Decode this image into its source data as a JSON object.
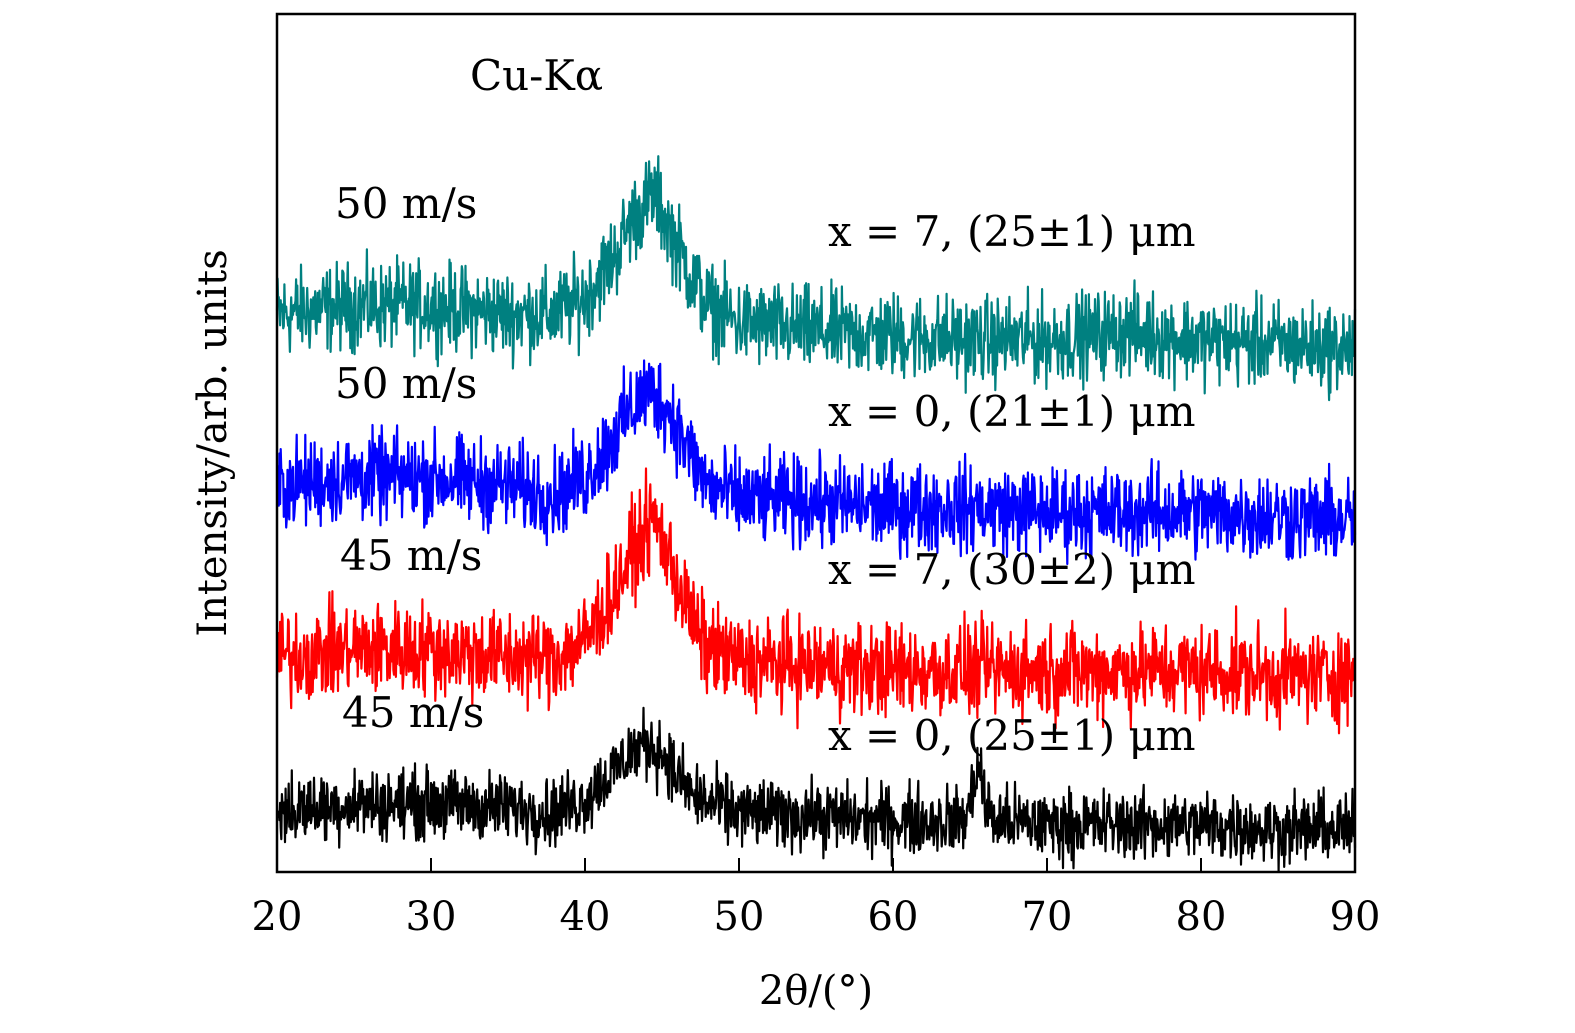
{
  "chart_data": {
    "type": "line",
    "title": "",
    "annotation": "Cu-Kα",
    "xlabel": "2θ/(°)",
    "ylabel": "Intensity/arb. units",
    "xlim": [
      20,
      90
    ],
    "xticks": [
      20,
      30,
      40,
      50,
      60,
      70,
      80,
      90
    ],
    "ylim": [
      0,
      100
    ],
    "grid": false,
    "legend": "inline labels",
    "series": [
      {
        "speed": "50 m/s",
        "name": "x = 7, (25±1) μm",
        "color": "#008080",
        "x": [
          20,
          25,
          30,
          35,
          38,
          40,
          42,
          43,
          44,
          44.5,
          45,
          46,
          47,
          48,
          50,
          55,
          60,
          65,
          70,
          75,
          80,
          85,
          90
        ],
        "y": [
          65,
          66,
          66,
          65,
          65,
          67,
          72,
          76,
          78,
          79,
          77,
          73,
          69,
          66,
          64,
          63,
          62.5,
          62,
          62,
          63,
          62,
          61.5,
          61
        ],
        "noise": 3.5
      },
      {
        "speed": "50 m/s",
        "name": "x = 0, (21±1) μm",
        "color": "#0000ff",
        "x": [
          20,
          25,
          30,
          35,
          38,
          40,
          42,
          43,
          44,
          45,
          46,
          47,
          48,
          50,
          55,
          60,
          65,
          70,
          75,
          80,
          85,
          90
        ],
        "y": [
          45,
          46,
          46,
          45,
          44,
          46,
          51,
          54,
          56,
          55,
          52,
          48,
          45,
          43.5,
          43,
          42.5,
          42.5,
          42,
          42,
          42,
          41.5,
          41
        ],
        "noise": 3.6
      },
      {
        "speed": "45 m/s",
        "name": "x = 7, (30±2) μm",
        "color": "#ff0000",
        "x": [
          20,
          25,
          30,
          35,
          38,
          40,
          42,
          43,
          44,
          44.5,
          45,
          46,
          47,
          48,
          50,
          55,
          60,
          65,
          70,
          75,
          80,
          85,
          90
        ],
        "y": [
          25,
          26,
          26,
          25,
          25,
          27,
          33,
          37,
          40,
          41,
          39,
          34,
          29,
          26,
          24.5,
          24,
          23.5,
          23.5,
          23.5,
          23.5,
          23.5,
          23,
          23
        ],
        "noise": 3.8
      },
      {
        "speed": "45 m/s",
        "name": "x = 0, (25±1) μm",
        "color": "#000000",
        "x": [
          20,
          25,
          30,
          35,
          38,
          40,
          42,
          43,
          44,
          45,
          46,
          47,
          48,
          50,
          55,
          60,
          64.5,
          65,
          65.5,
          66,
          66.5,
          70,
          75,
          80,
          85,
          90
        ],
        "y": [
          7,
          8,
          8,
          7.5,
          7,
          8.5,
          12,
          14,
          15,
          14,
          11,
          9,
          8,
          7,
          6.5,
          6,
          6,
          7.5,
          13,
          8,
          6,
          5.5,
          5.5,
          5.5,
          5,
          5
        ],
        "noise": 2.8
      }
    ]
  }
}
